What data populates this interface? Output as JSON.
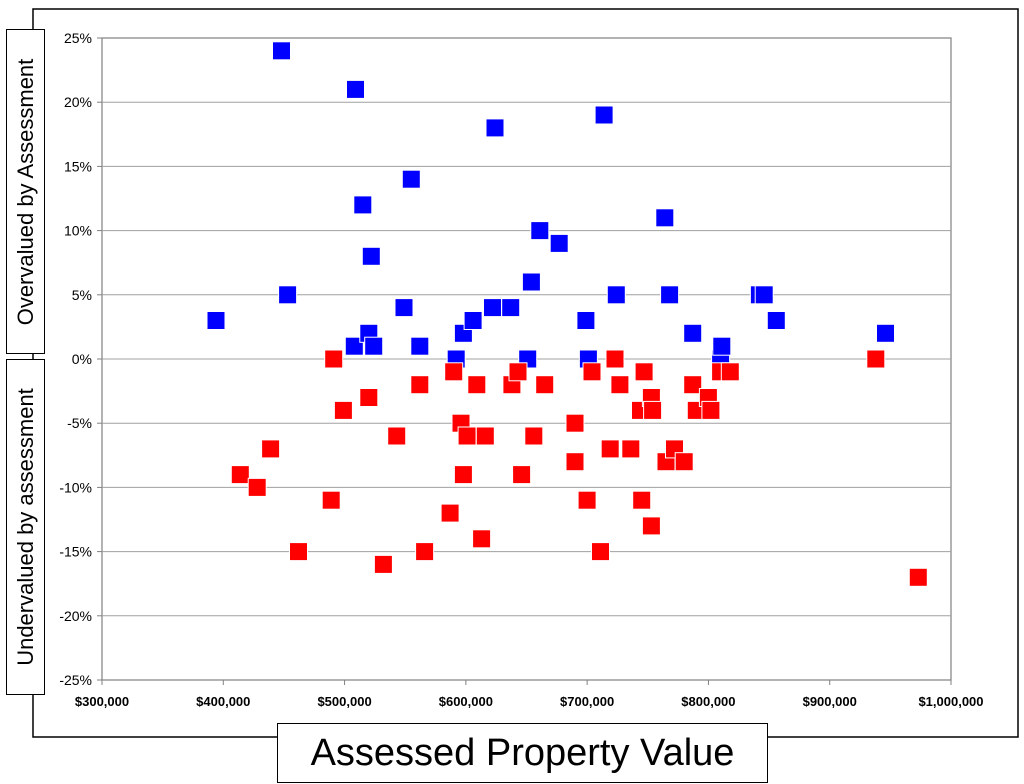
{
  "chart_data": {
    "type": "scatter",
    "title": "",
    "xlabel": "Assessed Property Value",
    "ylabel_top": "Overvalued by  Assessment",
    "ylabel_bottom": "Undervalued by assessment",
    "xlim": [
      300000,
      1000000
    ],
    "ylim": [
      -25,
      25
    ],
    "x_ticks": [
      300000,
      400000,
      500000,
      600000,
      700000,
      800000,
      900000,
      1000000
    ],
    "x_tick_labels": [
      "$300,000",
      "$400,000",
      "$500,000",
      "$600,000",
      "$700,000",
      "$800,000",
      "$900,000",
      "$1,000,000"
    ],
    "y_ticks": [
      25,
      20,
      15,
      10,
      5,
      0,
      -5,
      -10,
      -15,
      -20,
      -25
    ],
    "y_tick_labels": [
      "25%",
      "20%",
      "15%",
      "10%",
      "5%",
      "0%",
      "-5%",
      "-10%",
      "-15%",
      "-20%",
      "-25%"
    ],
    "grid": "horizontal",
    "legend": "none",
    "series": [
      {
        "color": "#0000ff",
        "points": [
          [
            394000,
            3
          ],
          [
            448000,
            24
          ],
          [
            453000,
            5
          ],
          [
            508000,
            1
          ],
          [
            509000,
            21
          ],
          [
            515000,
            12
          ],
          [
            520000,
            2
          ],
          [
            522000,
            8
          ],
          [
            524000,
            1
          ],
          [
            549000,
            4
          ],
          [
            555000,
            14
          ],
          [
            562000,
            1
          ],
          [
            592000,
            0
          ],
          [
            598000,
            2
          ],
          [
            606000,
            3
          ],
          [
            622000,
            4
          ],
          [
            624000,
            18
          ],
          [
            637000,
            4
          ],
          [
            651000,
            0
          ],
          [
            654000,
            6
          ],
          [
            661000,
            10
          ],
          [
            677000,
            9
          ],
          [
            699000,
            3
          ],
          [
            701000,
            0
          ],
          [
            714000,
            19
          ],
          [
            724000,
            5
          ],
          [
            764000,
            11
          ],
          [
            768000,
            5
          ],
          [
            787000,
            2
          ],
          [
            810000,
            0
          ],
          [
            811000,
            1
          ],
          [
            842000,
            5
          ],
          [
            846000,
            5
          ],
          [
            856000,
            3
          ],
          [
            946000,
            2
          ]
        ]
      },
      {
        "color": "#ff0000",
        "points": [
          [
            414000,
            -9
          ],
          [
            428000,
            -10
          ],
          [
            439000,
            -7
          ],
          [
            462000,
            -15
          ],
          [
            489000,
            -11
          ],
          [
            491000,
            0
          ],
          [
            499000,
            -4
          ],
          [
            520000,
            -3
          ],
          [
            532000,
            -16
          ],
          [
            543000,
            -6
          ],
          [
            562000,
            -2
          ],
          [
            566000,
            -15
          ],
          [
            587000,
            -12
          ],
          [
            590000,
            -1
          ],
          [
            596000,
            -5
          ],
          [
            598000,
            -9
          ],
          [
            601000,
            -6
          ],
          [
            609000,
            -2
          ],
          [
            613000,
            -14
          ],
          [
            616000,
            -6
          ],
          [
            638000,
            -2
          ],
          [
            643000,
            -1
          ],
          [
            646000,
            -9
          ],
          [
            656000,
            -6
          ],
          [
            665000,
            -2
          ],
          [
            690000,
            -5
          ],
          [
            690000,
            -8
          ],
          [
            700000,
            -11
          ],
          [
            704000,
            -1
          ],
          [
            711000,
            -15
          ],
          [
            719000,
            -7
          ],
          [
            723000,
            0
          ],
          [
            727000,
            -2
          ],
          [
            736000,
            -7
          ],
          [
            744000,
            -4
          ],
          [
            745000,
            -11
          ],
          [
            747000,
            -1
          ],
          [
            753000,
            -13
          ],
          [
            753000,
            -3
          ],
          [
            754000,
            -4
          ],
          [
            765000,
            -8
          ],
          [
            772000,
            -7
          ],
          [
            780000,
            -8
          ],
          [
            787000,
            -2
          ],
          [
            790000,
            -4
          ],
          [
            800000,
            -3
          ],
          [
            802000,
            -4
          ],
          [
            810000,
            -1
          ],
          [
            818000,
            -1
          ],
          [
            938000,
            0
          ],
          [
            973000,
            -17
          ]
        ]
      }
    ]
  }
}
